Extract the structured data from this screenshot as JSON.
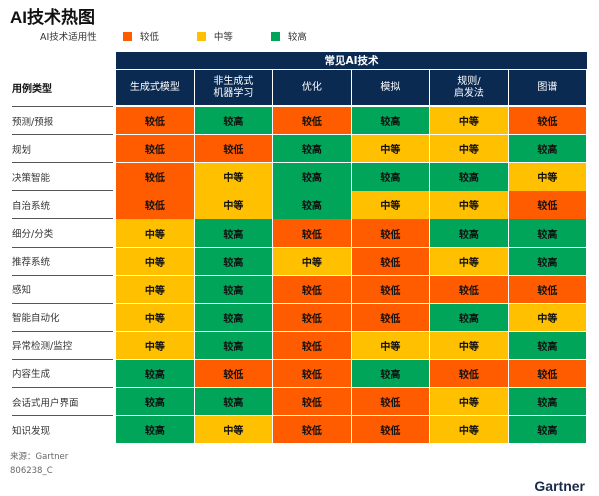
{
  "title": "AI技术热图",
  "legend": {
    "title": "AI技术适用性",
    "items": [
      {
        "label": "较低",
        "color": "#ff5c00"
      },
      {
        "label": "中等",
        "color": "#ffc000"
      },
      {
        "label": "较高",
        "color": "#00a55a"
      }
    ]
  },
  "source": "来源：Gartner",
  "doc_id": "806238_C",
  "brand": "Gartner",
  "chart_data": {
    "type": "heatmap",
    "title": "AI技术热图",
    "column_group": "常见AI技术",
    "row_header": "用例类型",
    "columns": [
      "生成式模型",
      "非生成式\n机器学习",
      "优化",
      "模拟",
      "规则/\n启发法",
      "图谱"
    ],
    "rows": [
      {
        "label": "预测/预报",
        "values": [
          "较低",
          "较高",
          "较低",
          "较高",
          "中等",
          "较低"
        ]
      },
      {
        "label": "规划",
        "values": [
          "较低",
          "较低",
          "较高",
          "中等",
          "中等",
          "较高"
        ]
      },
      {
        "label": "决策智能",
        "values": [
          "较低",
          "中等",
          "较高",
          "较高",
          "较高",
          "中等"
        ]
      },
      {
        "label": "自治系统",
        "values": [
          "较低",
          "中等",
          "较高",
          "中等",
          "中等",
          "较低"
        ]
      },
      {
        "label": "细分/分类",
        "values": [
          "中等",
          "较高",
          "较低",
          "较低",
          "较高",
          "较高"
        ]
      },
      {
        "label": "推荐系统",
        "values": [
          "中等",
          "较高",
          "中等",
          "较低",
          "中等",
          "较高"
        ]
      },
      {
        "label": "感知",
        "values": [
          "中等",
          "较高",
          "较低",
          "较低",
          "较低",
          "较低"
        ]
      },
      {
        "label": "智能自动化",
        "values": [
          "中等",
          "较高",
          "较低",
          "较低",
          "较高",
          "中等"
        ]
      },
      {
        "label": "异常检测/监控",
        "values": [
          "中等",
          "较高",
          "较低",
          "中等",
          "中等",
          "较高"
        ]
      },
      {
        "label": "内容生成",
        "values": [
          "较高",
          "较低",
          "较低",
          "较高",
          "较低",
          "较低"
        ]
      },
      {
        "label": "会话式用户界面",
        "values": [
          "较高",
          "较高",
          "较低",
          "较低",
          "中等",
          "较高"
        ]
      },
      {
        "label": "知识发现",
        "values": [
          "较高",
          "中等",
          "较低",
          "较低",
          "中等",
          "较高"
        ]
      }
    ]
  }
}
